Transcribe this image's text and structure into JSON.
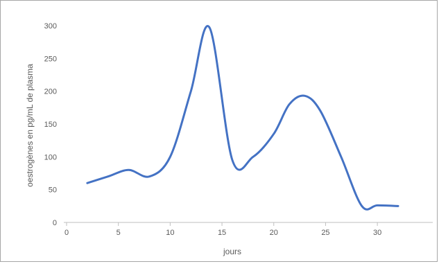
{
  "chart_data": {
    "type": "line",
    "xlabel": "jours",
    "ylabel": "oestrogènes en pg/mL de plasma",
    "xlim": [
      0,
      32
    ],
    "ylim": [
      0,
      300
    ],
    "x_ticks": [
      0,
      5,
      10,
      15,
      20,
      25,
      30
    ],
    "y_ticks": [
      0,
      50,
      100,
      150,
      200,
      250,
      300
    ],
    "grid": false,
    "legend": "none",
    "series": [
      {
        "color": "#4472c4",
        "points": [
          [
            2,
            60
          ],
          [
            4,
            70
          ],
          [
            6,
            80
          ],
          [
            8,
            70
          ],
          [
            10,
            100
          ],
          [
            12,
            200
          ],
          [
            13.8,
            297
          ],
          [
            16,
            95
          ],
          [
            18,
            100
          ],
          [
            20,
            135
          ],
          [
            21.5,
            180
          ],
          [
            23,
            193
          ],
          [
            24.5,
            170
          ],
          [
            26.5,
            100
          ],
          [
            28.5,
            25
          ],
          [
            30,
            26
          ],
          [
            32,
            25
          ]
        ]
      }
    ]
  }
}
